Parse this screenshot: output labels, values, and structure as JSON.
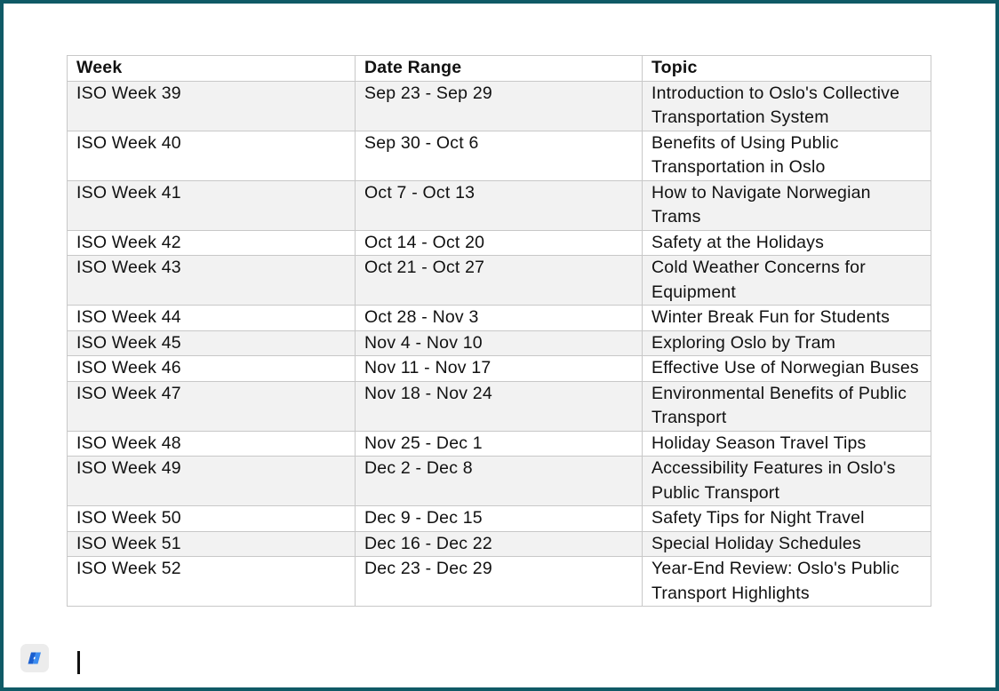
{
  "table": {
    "headers": [
      "Week",
      "Date Range",
      "Topic"
    ],
    "rows": [
      [
        "ISO Week 39",
        "Sep 23 - Sep 29",
        "Introduction to Oslo's Collective Transportation System"
      ],
      [
        "ISO Week 40",
        "Sep 30 - Oct 6",
        "Benefits of Using Public Transportation in Oslo"
      ],
      [
        "ISO Week 41",
        "Oct 7 - Oct 13",
        "How to Navigate Norwegian Trams"
      ],
      [
        "ISO Week 42",
        "Oct 14 - Oct 20",
        "Safety at the Holidays"
      ],
      [
        "ISO Week 43",
        "Oct 21 - Oct 27",
        "Cold Weather Concerns for Equipment"
      ],
      [
        "ISO Week 44",
        "Oct 28 - Nov 3",
        "Winter Break Fun for Students"
      ],
      [
        "ISO Week 45",
        "Nov 4 - Nov 10",
        "Exploring Oslo by Tram"
      ],
      [
        "ISO Week 46",
        "Nov 11 - Nov 17",
        "Effective Use of Norwegian Buses"
      ],
      [
        "ISO Week 47",
        "Nov 18 - Nov 24",
        "Environmental Benefits of Public Transport"
      ],
      [
        "ISO Week 48",
        "Nov 25 - Dec 1",
        "Holiday Season Travel Tips"
      ],
      [
        "ISO Week 49",
        "Dec 2 - Dec 8",
        "Accessibility Features in Oslo's Public Transport"
      ],
      [
        "ISO Week 50",
        "Dec 9 - Dec 15",
        "Safety Tips for Night Travel"
      ],
      [
        "ISO Week 51",
        "Dec 16 - Dec 22",
        "Special Holiday Schedules"
      ],
      [
        "ISO Week 52",
        "Dec 23 - Dec 29",
        "Year-End Review: Oslo's Public Transport Highlights"
      ]
    ]
  },
  "icons": {
    "copilot": "copilot-icon"
  },
  "colors": {
    "window_border": "#0f5a66",
    "row_stripe": "#f2f2f2",
    "grid_line": "#c8c8c8",
    "copilot_blue": "#1a5fd0"
  }
}
